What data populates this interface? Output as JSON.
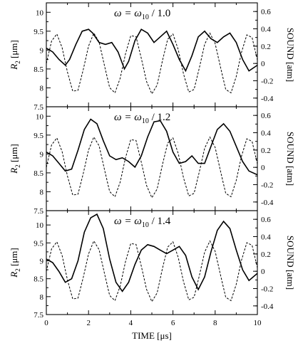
{
  "chart_data": [
    {
      "type": "line",
      "title_main": "ω = ω",
      "title_sub": "10",
      "title_tail": " / 1.0",
      "ylabel_main": "R",
      "ylabel_sub": "2",
      "ylabel_unit": " [μm]",
      "y2label": "SOUND  [atm]",
      "xlim": [
        0,
        10
      ],
      "ylim": [
        7.5,
        10.25
      ],
      "y2lim": [
        -0.5,
        0.7
      ],
      "yticks": [
        "7.5",
        "8",
        "8.5",
        "9",
        "9.5",
        "10"
      ],
      "y2ticks": [
        "-0.4",
        "-0.2",
        "0",
        "0.2",
        "0.4",
        "0.6"
      ],
      "series": [
        {
          "axis": "left",
          "style": "solid",
          "x": [
            0,
            0.3,
            0.6,
            0.9,
            1.1,
            1.4,
            1.7,
            2.0,
            2.2,
            2.5,
            2.8,
            3.1,
            3.4,
            3.7,
            3.9,
            4.2,
            4.5,
            4.8,
            5.1,
            5.4,
            5.7,
            6.0,
            6.3,
            6.6,
            6.9,
            7.2,
            7.5,
            7.8,
            8.1,
            8.4,
            8.7,
            9.0,
            9.3,
            9.6,
            10.0
          ],
          "values": [
            9.05,
            8.95,
            8.75,
            8.6,
            8.75,
            9.15,
            9.5,
            9.55,
            9.45,
            9.2,
            9.15,
            9.2,
            8.95,
            8.5,
            8.7,
            9.25,
            9.55,
            9.45,
            9.2,
            9.35,
            9.5,
            9.15,
            8.75,
            8.45,
            8.85,
            9.35,
            9.5,
            9.3,
            9.2,
            9.35,
            9.45,
            9.2,
            8.75,
            8.45,
            8.6
          ]
        },
        {
          "axis": "right",
          "style": "dashed",
          "x": [
            0,
            0.25,
            0.5,
            0.75,
            1.0,
            1.25,
            1.5,
            1.75,
            2.0,
            2.25,
            2.5,
            2.75,
            3.0,
            3.25,
            3.5,
            3.75,
            4.0,
            4.25,
            4.5,
            4.75,
            5.0,
            5.25,
            5.5,
            5.75,
            6.0,
            6.25,
            6.5,
            6.75,
            7.0,
            7.25,
            7.5,
            7.75,
            8.0,
            8.25,
            8.5,
            8.75,
            9.0,
            9.25,
            9.5,
            9.75,
            10.0
          ],
          "values": [
            0,
            0.26,
            0.34,
            0.18,
            -0.1,
            -0.32,
            -0.31,
            -0.07,
            0.2,
            0.35,
            0.25,
            -0.02,
            -0.28,
            -0.34,
            -0.17,
            0.11,
            0.32,
            0.31,
            0.06,
            -0.21,
            -0.35,
            -0.25,
            0.03,
            0.28,
            0.34,
            0.16,
            -0.12,
            -0.33,
            -0.3,
            -0.05,
            0.22,
            0.35,
            0.23,
            -0.04,
            -0.3,
            -0.34,
            -0.15,
            0.13,
            0.33,
            0.3,
            0.04
          ]
        }
      ]
    },
    {
      "type": "line",
      "title_main": "ω = ω",
      "title_sub": "10",
      "title_tail": " / 1.2",
      "ylabel_main": "R",
      "ylabel_sub": "2",
      "ylabel_unit": " [μm]",
      "y2label": "SOUND  [atm]",
      "xlim": [
        0,
        10
      ],
      "ylim": [
        7.5,
        10.25
      ],
      "y2lim": [
        -0.5,
        0.7
      ],
      "yticks": [
        "7.5",
        "8",
        "8.5",
        "9",
        "9.5",
        "10"
      ],
      "y2ticks": [
        "-0.4",
        "-0.2",
        "0",
        "0.2",
        "0.4",
        "0.6"
      ],
      "series": [
        {
          "axis": "left",
          "style": "solid",
          "x": [
            0,
            0.3,
            0.6,
            0.9,
            1.2,
            1.5,
            1.8,
            2.1,
            2.4,
            2.7,
            3.0,
            3.3,
            3.6,
            3.9,
            4.2,
            4.5,
            4.8,
            5.1,
            5.4,
            5.7,
            6.0,
            6.3,
            6.6,
            6.9,
            7.2,
            7.5,
            7.8,
            8.1,
            8.4,
            8.7,
            9.0,
            9.3,
            9.6,
            10.0
          ],
          "values": [
            9.05,
            8.95,
            8.75,
            8.55,
            8.6,
            9.1,
            9.65,
            9.92,
            9.8,
            9.35,
            8.95,
            8.85,
            8.9,
            8.8,
            8.65,
            8.95,
            9.45,
            9.85,
            9.88,
            9.6,
            9.05,
            8.75,
            8.8,
            8.95,
            8.75,
            8.75,
            9.2,
            9.65,
            9.8,
            9.6,
            9.2,
            8.8,
            8.55,
            8.45
          ]
        },
        {
          "axis": "right",
          "style": "dashed",
          "x": [
            0,
            0.25,
            0.5,
            0.75,
            1.0,
            1.25,
            1.5,
            1.75,
            2.0,
            2.25,
            2.5,
            2.75,
            3.0,
            3.25,
            3.5,
            3.75,
            4.0,
            4.25,
            4.5,
            4.75,
            5.0,
            5.25,
            5.5,
            5.75,
            6.0,
            6.25,
            6.5,
            6.75,
            7.0,
            7.25,
            7.5,
            7.75,
            8.0,
            8.25,
            8.5,
            8.75,
            9.0,
            9.25,
            9.5,
            9.75,
            10.0
          ],
          "values": [
            0,
            0.26,
            0.34,
            0.18,
            -0.1,
            -0.32,
            -0.31,
            -0.07,
            0.2,
            0.35,
            0.25,
            -0.02,
            -0.28,
            -0.34,
            -0.17,
            0.11,
            0.32,
            0.31,
            0.06,
            -0.21,
            -0.35,
            -0.25,
            0.03,
            0.28,
            0.34,
            0.16,
            -0.12,
            -0.33,
            -0.3,
            -0.05,
            0.22,
            0.35,
            0.23,
            -0.04,
            -0.3,
            -0.34,
            -0.15,
            0.13,
            0.33,
            0.3,
            0.04
          ]
        }
      ]
    },
    {
      "type": "line",
      "title_main": "ω = ω",
      "title_sub": "10",
      "title_tail": " / 1.4",
      "ylabel_main": "R",
      "ylabel_sub": "2",
      "ylabel_unit": " [μm]",
      "y2label": "SOUND  [atm]",
      "xlabel": "TIME  [μs]",
      "xticks": [
        "0",
        "2",
        "4",
        "6",
        "8",
        "10"
      ],
      "xlim": [
        0,
        10
      ],
      "ylim": [
        7.5,
        10.4
      ],
      "y2lim": [
        -0.5,
        0.7
      ],
      "yticks": [
        "7.5",
        "8",
        "8.5",
        "9",
        "9.5",
        "10"
      ],
      "y2ticks": [
        "-0.4",
        "-0.2",
        "0",
        "0.2",
        "0.4",
        "0.6"
      ],
      "series": [
        {
          "axis": "left",
          "style": "solid",
          "x": [
            0,
            0.3,
            0.6,
            0.9,
            1.2,
            1.5,
            1.8,
            2.1,
            2.4,
            2.7,
            3.0,
            3.3,
            3.6,
            3.9,
            4.2,
            4.5,
            4.8,
            5.1,
            5.4,
            5.7,
            6.0,
            6.3,
            6.6,
            6.9,
            7.2,
            7.5,
            7.8,
            8.1,
            8.4,
            8.7,
            9.0,
            9.3,
            9.6,
            10.0
          ],
          "values": [
            9.05,
            8.95,
            8.7,
            8.4,
            8.5,
            9.0,
            9.8,
            10.2,
            10.3,
            9.9,
            9.05,
            8.4,
            8.15,
            8.4,
            8.9,
            9.3,
            9.45,
            9.4,
            9.3,
            9.2,
            9.3,
            9.4,
            9.15,
            8.55,
            8.2,
            8.55,
            9.25,
            9.85,
            10.1,
            9.9,
            9.3,
            8.75,
            8.45,
            8.65
          ]
        },
        {
          "axis": "right",
          "style": "dashed",
          "x": [
            0,
            0.25,
            0.5,
            0.75,
            1.0,
            1.25,
            1.5,
            1.75,
            2.0,
            2.25,
            2.5,
            2.75,
            3.0,
            3.25,
            3.5,
            3.75,
            4.0,
            4.25,
            4.5,
            4.75,
            5.0,
            5.25,
            5.5,
            5.75,
            6.0,
            6.25,
            6.5,
            6.75,
            7.0,
            7.25,
            7.5,
            7.75,
            8.0,
            8.25,
            8.5,
            8.75,
            9.0,
            9.25,
            9.5,
            9.75,
            10.0
          ],
          "values": [
            0,
            0.26,
            0.34,
            0.18,
            -0.1,
            -0.32,
            -0.31,
            -0.07,
            0.2,
            0.35,
            0.25,
            -0.02,
            -0.28,
            -0.34,
            -0.17,
            0.11,
            0.32,
            0.31,
            0.06,
            -0.21,
            -0.35,
            -0.25,
            0.03,
            0.28,
            0.34,
            0.16,
            -0.12,
            -0.33,
            -0.3,
            -0.05,
            0.22,
            0.35,
            0.23,
            -0.04,
            -0.3,
            -0.34,
            -0.15,
            0.13,
            0.33,
            0.3,
            0.04
          ]
        }
      ]
    }
  ]
}
